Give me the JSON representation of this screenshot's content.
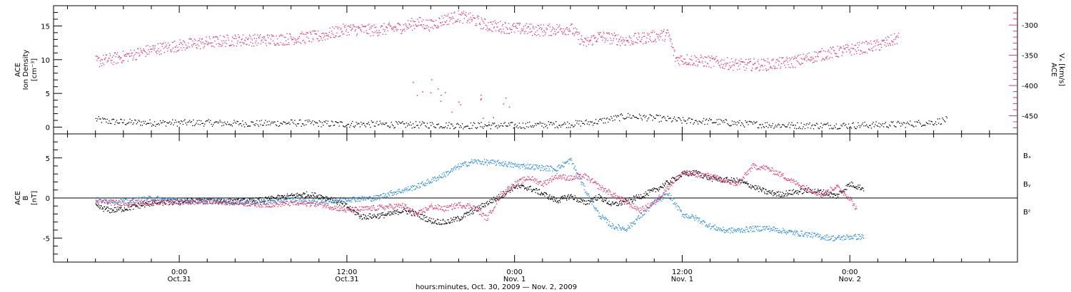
{
  "chart_data": [
    {
      "type": "scatter",
      "panel": "top",
      "ylabel_lines": [
        "ACE",
        "Ion Density",
        "[cm⁻³]"
      ],
      "ylim": [
        -1,
        18
      ],
      "yticks": [
        0,
        5,
        10,
        15
      ],
      "ytick_labels": [
        "0",
        "5",
        "10",
        "15"
      ],
      "right_axis": {
        "ylabel_lines": [
          "ACE",
          "Vₓ [km/s]"
        ],
        "ylim": [
          -480,
          -268
        ],
        "yticks": [
          -300,
          -350,
          -400,
          -450
        ],
        "ytick_labels": [
          "-300",
          "-350",
          "-400",
          "-450"
        ],
        "color": "#e8336b"
      },
      "x_unit": "hours since Oct. 30, 2009 00:00",
      "series": [
        {
          "axis": "left",
          "color": "#000000",
          "points": [
            [
              18,
              1.2
            ],
            [
              19,
              0.9
            ],
            [
              20,
              0.8
            ],
            [
              22,
              0.7
            ],
            [
              24,
              0.7
            ],
            [
              26,
              0.7
            ],
            [
              28,
              0.6
            ],
            [
              30,
              0.6
            ],
            [
              32,
              0.7
            ],
            [
              34,
              0.6
            ],
            [
              36,
              0.5
            ],
            [
              38,
              0.5
            ],
            [
              40,
              0.4
            ],
            [
              42,
              0.4
            ],
            [
              44,
              0.3
            ],
            [
              46,
              0.3
            ],
            [
              48,
              0.3
            ],
            [
              50,
              0.4
            ],
            [
              52,
              0.5
            ],
            [
              54,
              0.9
            ],
            [
              56,
              1.7
            ],
            [
              58,
              1.4
            ],
            [
              60,
              1.0
            ],
            [
              62,
              0.9
            ],
            [
              64,
              0.6
            ],
            [
              66,
              0.4
            ],
            [
              68,
              0.3
            ],
            [
              70,
              0.3
            ],
            [
              72,
              0.3
            ],
            [
              74,
              0.4
            ],
            [
              76,
              0.5
            ],
            [
              78,
              0.8
            ],
            [
              79,
              1.2
            ]
          ]
        },
        {
          "axis": "right",
          "color": "#e8336b",
          "points": [
            [
              18,
              -360
            ],
            [
              20,
              -352
            ],
            [
              22,
              -340
            ],
            [
              24,
              -333
            ],
            [
              26,
              -328
            ],
            [
              28,
              -324
            ],
            [
              30,
              -324
            ],
            [
              32,
              -322
            ],
            [
              34,
              -318
            ],
            [
              36,
              -306
            ],
            [
              38,
              -308
            ],
            [
              40,
              -303
            ],
            [
              41,
              -295
            ],
            [
              42,
              -300
            ],
            [
              43,
              -290
            ],
            [
              44,
              -285
            ],
            [
              45,
              -290
            ],
            [
              46,
              -300
            ],
            [
              48,
              -305
            ],
            [
              50,
              -308
            ],
            [
              52,
              -305
            ],
            [
              53,
              -330
            ],
            [
              54,
              -318
            ],
            [
              56,
              -325
            ],
            [
              58,
              -318
            ],
            [
              59,
              -315
            ],
            [
              59.5,
              -355
            ],
            [
              61,
              -358
            ],
            [
              62,
              -360
            ],
            [
              64,
              -365
            ],
            [
              66,
              -365
            ],
            [
              68,
              -360
            ],
            [
              70,
              -348
            ],
            [
              72,
              -340
            ],
            [
              74,
              -333
            ],
            [
              75,
              -325
            ],
            [
              75.5,
              -320
            ]
          ]
        },
        {
          "axis": "right",
          "color": "#e8336b",
          "points": [
            [
              41,
              -408
            ],
            [
              42,
              -400
            ],
            [
              43,
              -425
            ],
            [
              44,
              -440
            ],
            [
              45,
              -415
            ],
            [
              46,
              -445
            ],
            [
              47,
              -430
            ]
          ]
        }
      ]
    },
    {
      "type": "scatter",
      "panel": "bottom",
      "ylabel_lines": [
        "ACE",
        "B",
        "[nT]"
      ],
      "ylim": [
        -8,
        8
      ],
      "yticks": [
        -5,
        0,
        5
      ],
      "ytick_labels": [
        "-5",
        "0",
        "5"
      ],
      "x_unit": "hours since Oct. 30, 2009 00:00",
      "xticks": [
        24,
        36,
        48,
        60,
        72
      ],
      "xtick_labels": [
        [
          "0:00",
          "Oct.31"
        ],
        [
          "12:00",
          "Oct.31"
        ],
        [
          "0:00",
          "Nov. 1"
        ],
        [
          "12:00",
          "Nov. 1"
        ],
        [
          "0:00",
          "Nov. 2"
        ]
      ],
      "xlabel": "hours:minutes, Oct. 30, 2009 — Nov.  2, 2009",
      "legend": [
        {
          "label": "Bₓ",
          "color": "#000000"
        },
        {
          "label": "Bᵧ",
          "color": "#1e88e5"
        },
        {
          "label": "Bᶻ",
          "color": "#e8336b"
        }
      ],
      "series": [
        {
          "name": "Bₓ",
          "color": "#000000",
          "points": [
            [
              18,
              -1.0
            ],
            [
              19,
              -1.5
            ],
            [
              20,
              -1.3
            ],
            [
              22,
              -0.6
            ],
            [
              24,
              -0.4
            ],
            [
              26,
              -0.3
            ],
            [
              28,
              -0.4
            ],
            [
              30,
              -0.2
            ],
            [
              32,
              0.3
            ],
            [
              33,
              0.5
            ],
            [
              34,
              0.3
            ],
            [
              35,
              -0.2
            ],
            [
              36,
              -1.0
            ],
            [
              37,
              -2.3
            ],
            [
              38,
              -2.2
            ],
            [
              39,
              -2.0
            ],
            [
              40,
              -1.5
            ],
            [
              41,
              -2.0
            ],
            [
              42,
              -2.8
            ],
            [
              43,
              -3.0
            ],
            [
              44,
              -2.5
            ],
            [
              45,
              -1.6
            ],
            [
              46,
              -0.6
            ],
            [
              47,
              0.3
            ],
            [
              48,
              1.5
            ],
            [
              49,
              1.3
            ],
            [
              50,
              0.6
            ],
            [
              51,
              -0.3
            ],
            [
              52,
              0.3
            ],
            [
              53,
              -0.6
            ],
            [
              54,
              0.2
            ],
            [
              55,
              -0.8
            ],
            [
              56,
              -0.4
            ],
            [
              57,
              0.3
            ],
            [
              58,
              1.0
            ],
            [
              59,
              2.0
            ],
            [
              60,
              3.0
            ],
            [
              61,
              3.2
            ],
            [
              62,
              2.5
            ],
            [
              63,
              2.3
            ],
            [
              64,
              2.2
            ],
            [
              65,
              1.5
            ],
            [
              66,
              0.8
            ],
            [
              67,
              0.5
            ],
            [
              68,
              0.8
            ],
            [
              69,
              1.0
            ],
            [
              70,
              0.8
            ],
            [
              71,
              0.3
            ],
            [
              72,
              1.8
            ],
            [
              73,
              1.2
            ]
          ]
        },
        {
          "name": "Bᵧ",
          "color": "#1e88e5",
          "points": [
            [
              18,
              -0.2
            ],
            [
              20,
              -0.4
            ],
            [
              22,
              0.0
            ],
            [
              24,
              -0.3
            ],
            [
              26,
              -0.3
            ],
            [
              28,
              -0.4
            ],
            [
              30,
              -0.5
            ],
            [
              32,
              -0.2
            ],
            [
              34,
              -0.4
            ],
            [
              36,
              -0.1
            ],
            [
              38,
              0.0
            ],
            [
              39,
              0.6
            ],
            [
              40,
              1.0
            ],
            [
              41,
              1.5
            ],
            [
              42,
              2.2
            ],
            [
              43,
              3.0
            ],
            [
              44,
              4.0
            ],
            [
              45,
              4.6
            ],
            [
              46,
              4.5
            ],
            [
              47,
              4.4
            ],
            [
              48,
              4.1
            ],
            [
              49,
              4.0
            ],
            [
              50,
              3.8
            ],
            [
              51,
              3.7
            ],
            [
              52,
              4.8
            ],
            [
              53,
              1.2
            ],
            [
              54,
              -2.0
            ],
            [
              55,
              -3.5
            ],
            [
              56,
              -3.8
            ],
            [
              57,
              -2.2
            ],
            [
              58,
              -0.5
            ],
            [
              59,
              0.5
            ],
            [
              60,
              -2.0
            ],
            [
              61,
              -2.5
            ],
            [
              62,
              -3.5
            ],
            [
              63,
              -4.0
            ],
            [
              64,
              -4.0
            ],
            [
              65,
              -3.8
            ],
            [
              66,
              -3.7
            ],
            [
              67,
              -4.0
            ],
            [
              68,
              -4.3
            ],
            [
              69,
              -4.5
            ],
            [
              70,
              -4.8
            ],
            [
              71,
              -5.0
            ],
            [
              72,
              -4.8
            ],
            [
              73,
              -4.8
            ]
          ]
        },
        {
          "name": "Bᶻ",
          "color": "#e8336b",
          "points": [
            [
              18,
              -0.4
            ],
            [
              20,
              -0.6
            ],
            [
              22,
              -0.5
            ],
            [
              24,
              -0.5
            ],
            [
              26,
              -0.4
            ],
            [
              28,
              -0.5
            ],
            [
              30,
              -0.8
            ],
            [
              32,
              -0.6
            ],
            [
              34,
              -0.7
            ],
            [
              36,
              -1.5
            ],
            [
              38,
              -1.2
            ],
            [
              40,
              -0.9
            ],
            [
              41,
              -2.0
            ],
            [
              42,
              -1.0
            ],
            [
              43,
              -1.3
            ],
            [
              44,
              -0.8
            ],
            [
              45,
              -1.0
            ],
            [
              46,
              -2.5
            ],
            [
              47,
              0.5
            ],
            [
              48,
              1.8
            ],
            [
              49,
              2.6
            ],
            [
              50,
              1.8
            ],
            [
              51,
              2.8
            ],
            [
              52,
              2.5
            ],
            [
              53,
              2.8
            ],
            [
              54,
              1.5
            ],
            [
              55,
              0.5
            ],
            [
              56,
              -0.5
            ],
            [
              57,
              -1.5
            ],
            [
              58,
              -0.5
            ],
            [
              59,
              1.5
            ],
            [
              60,
              3.2
            ],
            [
              61,
              3.0
            ],
            [
              62,
              2.8
            ],
            [
              63,
              2.2
            ],
            [
              64,
              1.8
            ],
            [
              65,
              4.0
            ],
            [
              66,
              3.8
            ],
            [
              67,
              3.0
            ],
            [
              68,
              2.0
            ],
            [
              69,
              1.2
            ],
            [
              70,
              0.4
            ],
            [
              71,
              1.5
            ],
            [
              72,
              0.0
            ],
            [
              72.5,
              -1.5
            ]
          ]
        }
      ]
    }
  ]
}
